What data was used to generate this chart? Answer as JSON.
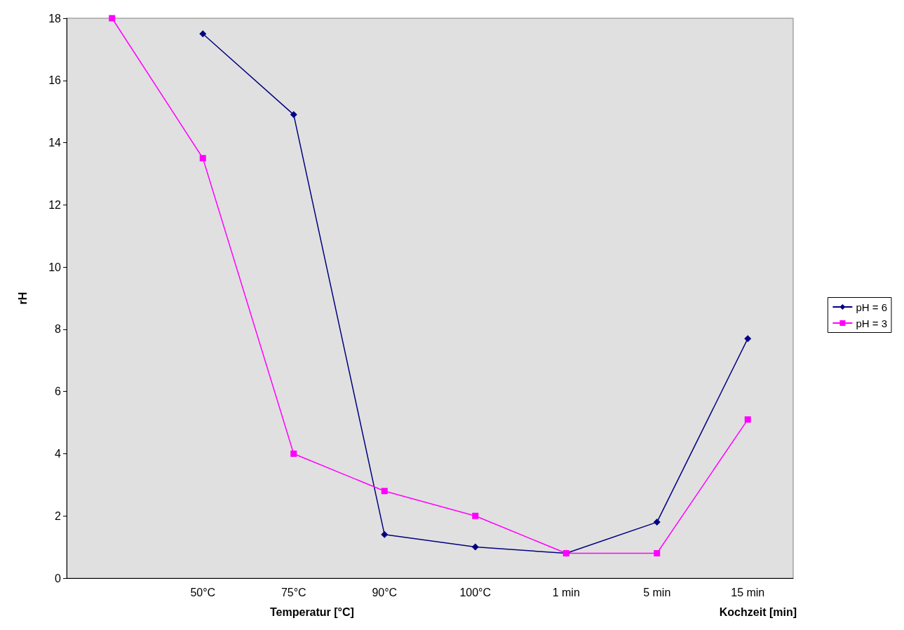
{
  "chart_data": {
    "type": "line",
    "ylabel": "rH",
    "xlabel": "Temperatur [°C]",
    "annotations": [
      "Kochzeit [min]"
    ],
    "categories": [
      null,
      "50°C",
      "75°C",
      "90°C",
      "100°C",
      "1 min",
      "5 min",
      "15 min"
    ],
    "series": [
      {
        "name": "pH = 6",
        "color": "#000080",
        "marker": "diamond",
        "values": [
          null,
          17.5,
          14.9,
          1.4,
          1.0,
          0.8,
          1.8,
          7.7
        ]
      },
      {
        "name": "pH = 3",
        "color": "#ff00ff",
        "marker": "square",
        "values": [
          18,
          13.5,
          4.0,
          2.8,
          2.0,
          0.8,
          0.8,
          5.1
        ]
      }
    ],
    "ylim": [
      0,
      18
    ],
    "yticks": [
      0,
      2,
      4,
      6,
      8,
      10,
      12,
      14,
      16,
      18
    ],
    "grid": false,
    "legend": "right",
    "line_style": "solid"
  }
}
